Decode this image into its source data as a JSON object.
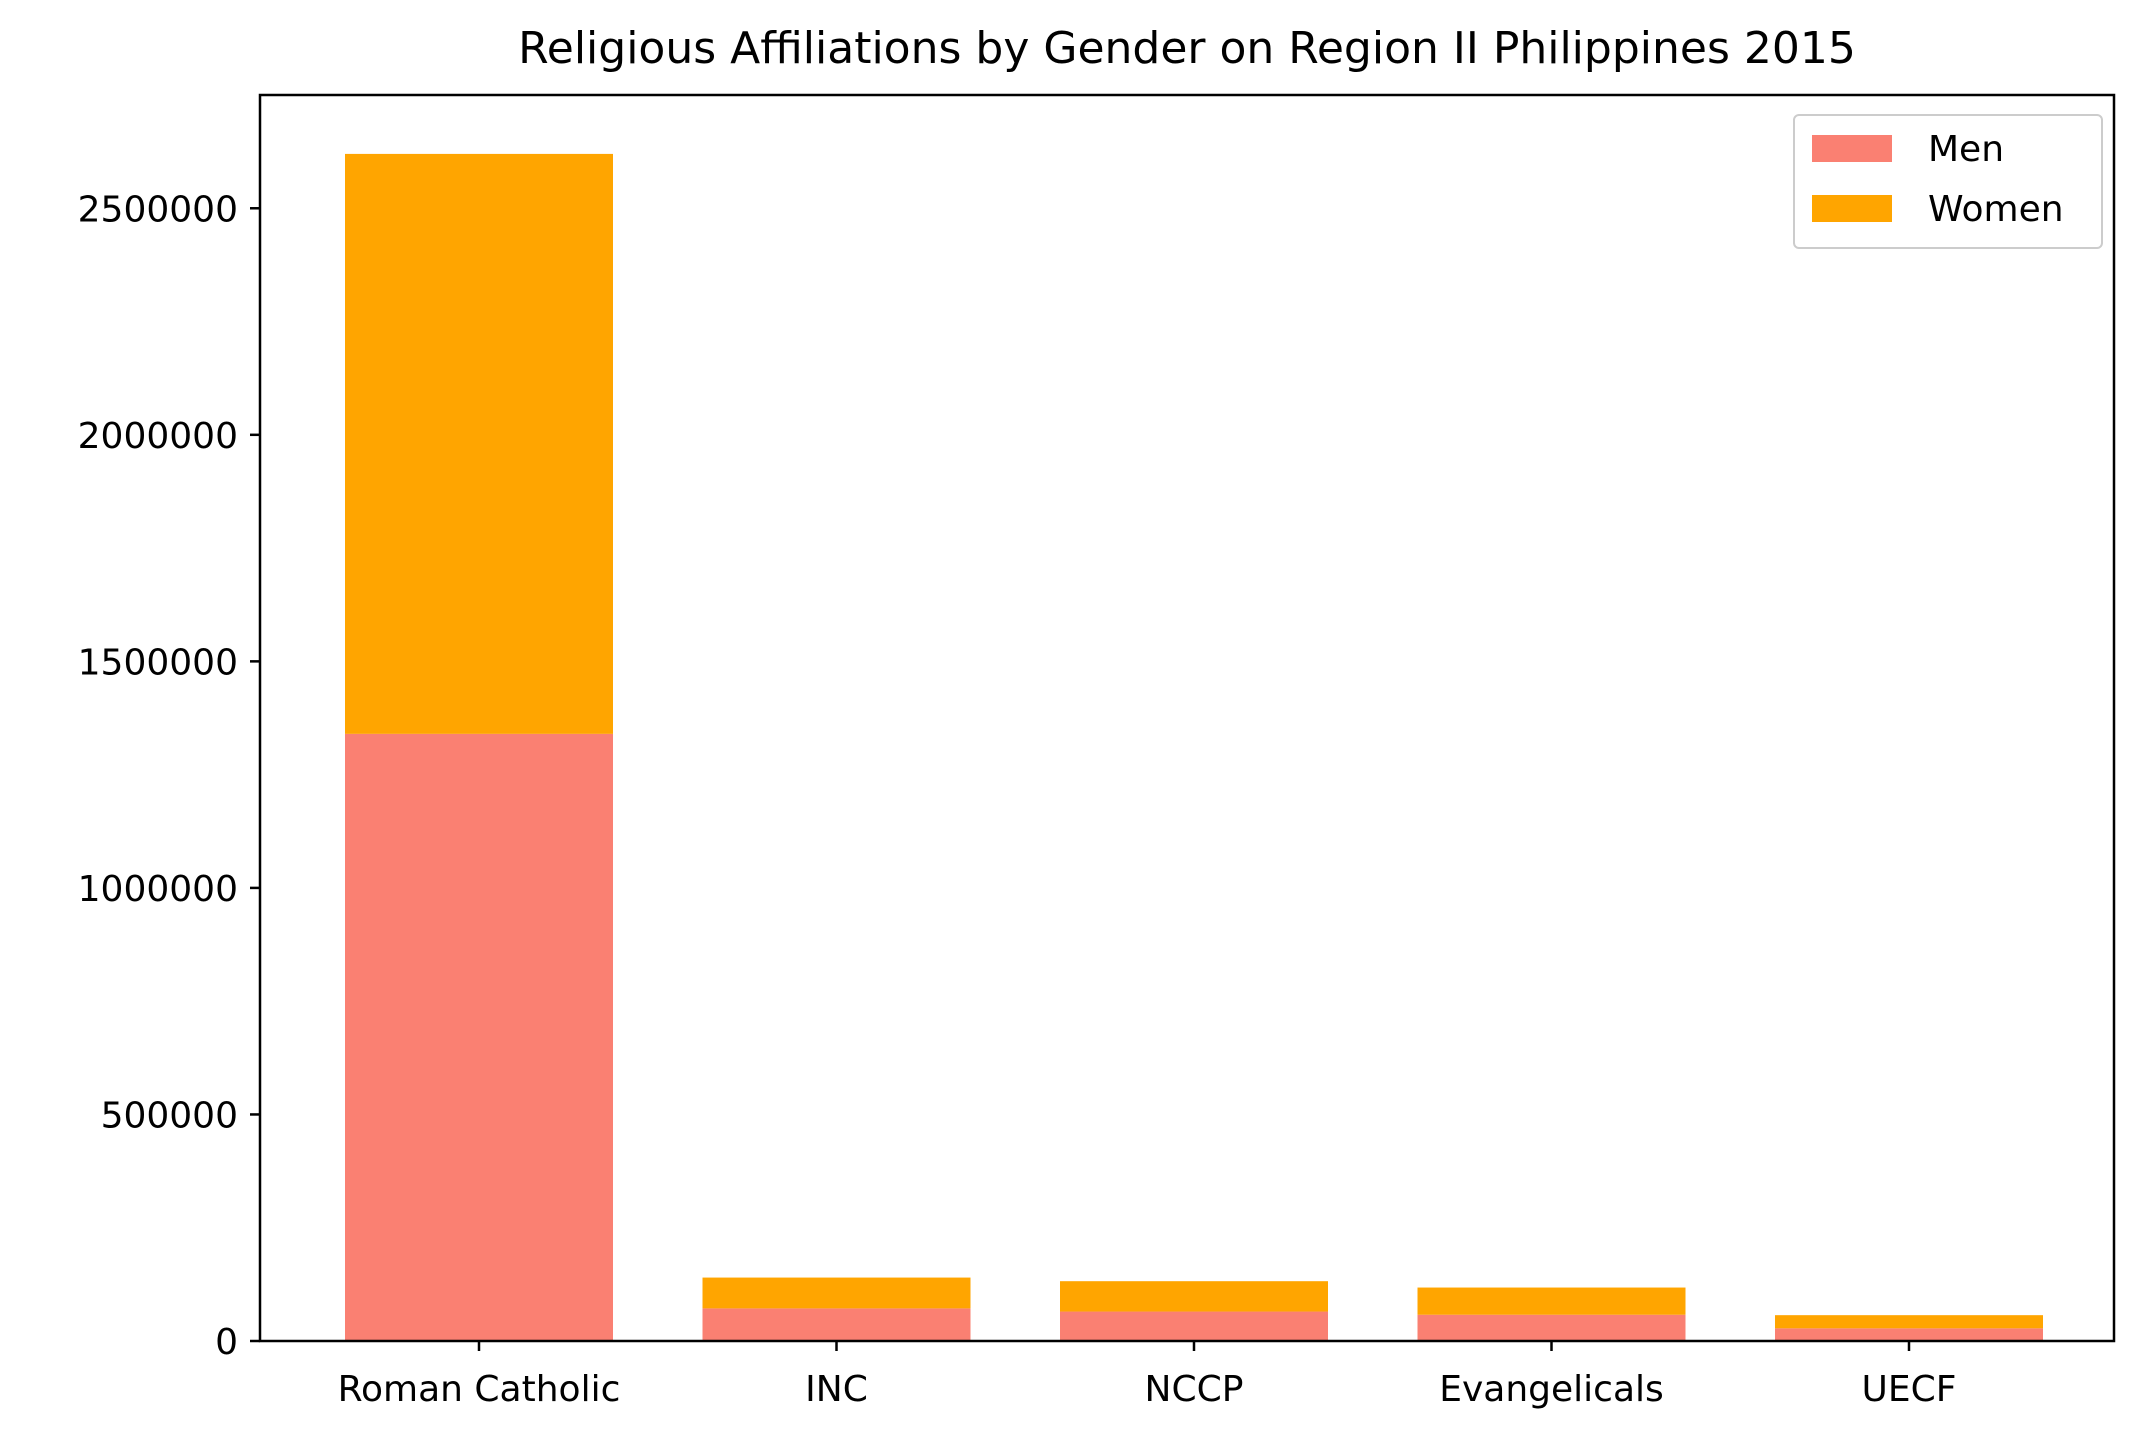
{
  "chart_data": {
    "type": "bar",
    "stacked": true,
    "title": "Religious Affiliations by Gender on Region II Philippines 2015",
    "xlabel": "",
    "ylabel": "",
    "categories": [
      "Roman Catholic",
      "INC",
      "NCCP",
      "Evangelicals",
      "UECF"
    ],
    "series": [
      {
        "name": "Men",
        "color": "#FA8072",
        "values": [
          1340000,
          72000,
          65000,
          58000,
          28000
        ]
      },
      {
        "name": "Women",
        "color": "#FFA500",
        "values": [
          1280000,
          68000,
          67000,
          60000,
          29000
        ]
      }
    ],
    "ylim": [
      0,
      2750000
    ],
    "yticks": [
      0,
      500000,
      1000000,
      1500000,
      2000000,
      2500000
    ],
    "ytick_labels": [
      "0",
      "500000",
      "1000000",
      "1500000",
      "2000000",
      "2500000"
    ],
    "grid": false,
    "legend_position": "top-right"
  }
}
